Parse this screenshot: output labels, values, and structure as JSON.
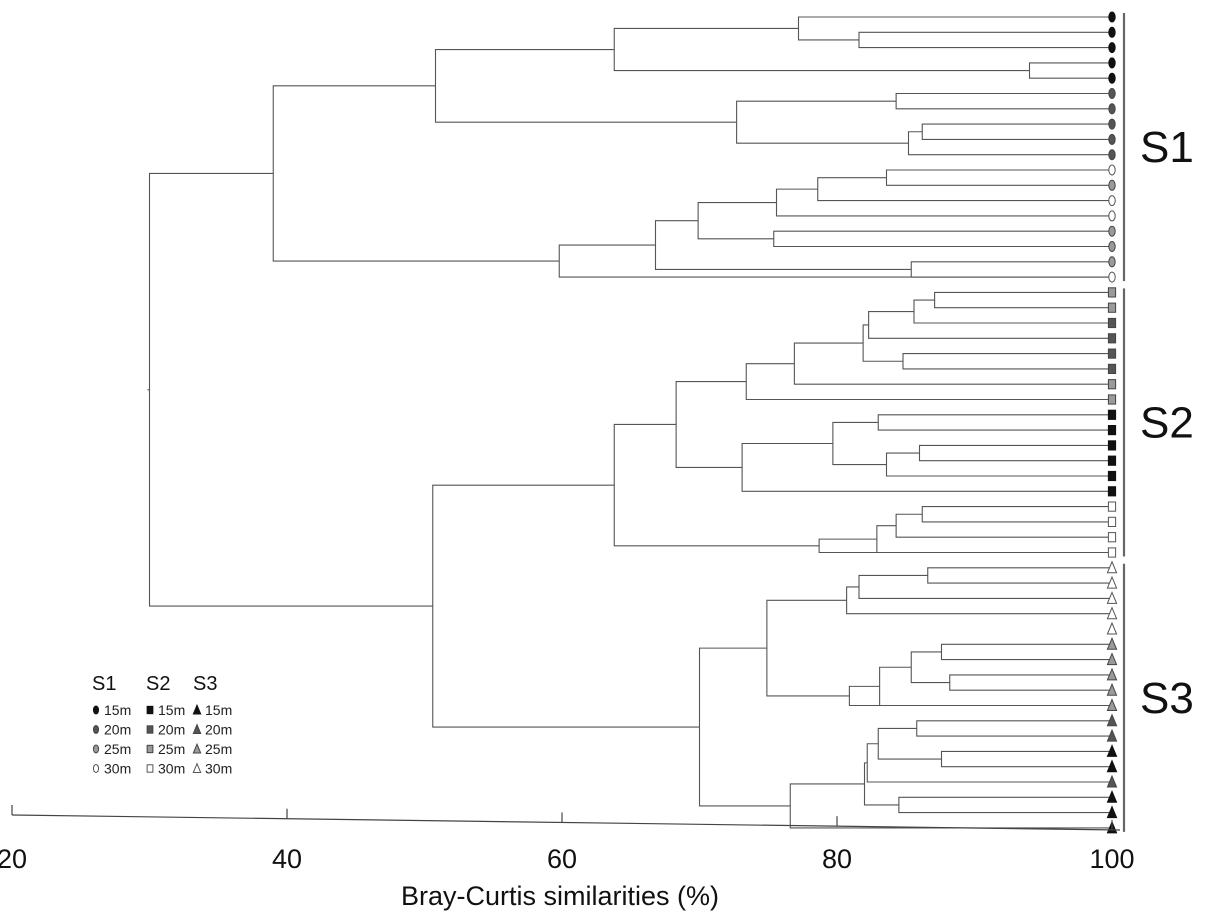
{
  "chart_data": {
    "type": "dendrogram",
    "xlabel": "Bray-Curtis similarities (%)",
    "xlim": [
      20,
      100
    ],
    "ticks": [
      20,
      40,
      60,
      80,
      100
    ],
    "tick_labels": [
      "20",
      "40",
      "60",
      "80",
      "100"
    ],
    "grid": false,
    "groups": [
      {
        "name": "S1",
        "leaves": [
          0,
          17
        ]
      },
      {
        "name": "S2",
        "leaves": [
          18,
          35
        ]
      },
      {
        "name": "S3",
        "leaves": [
          36,
          53
        ]
      }
    ],
    "leaf_symbols": [
      "S1-15",
      "S1-15",
      "S1-15",
      "S1-15",
      "S1-15",
      "S1-20",
      "S1-20",
      "S1-20",
      "S1-20",
      "S1-20",
      "S1-30",
      "S1-25",
      "S1-30",
      "S1-30",
      "S1-25",
      "S1-25",
      "S1-25",
      "S1-30",
      "S2-25",
      "S2-25",
      "S2-20",
      "S2-20",
      "S2-20",
      "S2-20",
      "S2-25",
      "S2-25",
      "S2-15",
      "S2-15",
      "S2-15",
      "S2-15",
      "S2-15",
      "S2-15",
      "S2-30",
      "S2-30",
      "S2-30",
      "S2-30",
      "S3-30",
      "S3-30",
      "S3-30",
      "S3-30",
      "S3-30",
      "S3-25",
      "S3-25",
      "S3-25",
      "S3-25",
      "S3-25",
      "S3-20",
      "S3-20",
      "S3-15",
      "S3-15",
      "S3-20",
      "S3-15",
      "S3-15",
      "S3-15"
    ],
    "merges": [
      {
        "id": "a1",
        "l": 1,
        "r": 2,
        "h": 81.6
      },
      {
        "id": "a2",
        "l": "a1",
        "r": 0,
        "h": 77.2
      },
      {
        "id": "a3",
        "l": 3,
        "r": 4,
        "h": 94.0
      },
      {
        "id": "a4",
        "l": "a2",
        "r": "a3",
        "h": 63.8
      },
      {
        "id": "b1",
        "l": 7,
        "r": 8,
        "h": 86.2
      },
      {
        "id": "b2",
        "l": "b1",
        "r": 9,
        "h": 85.2
      },
      {
        "id": "b3",
        "l": 5,
        "r": 6,
        "h": 84.3
      },
      {
        "id": "b4",
        "l": "b3",
        "r": "b2",
        "h": 72.7
      },
      {
        "id": "A",
        "l": "a4",
        "r": "b4",
        "h": 50.8
      },
      {
        "id": "c1",
        "l": 10,
        "r": 11,
        "h": 83.6
      },
      {
        "id": "c2",
        "l": "c1",
        "r": 12,
        "h": 78.6
      },
      {
        "id": "c3",
        "l": "c2",
        "r": 13,
        "h": 75.6
      },
      {
        "id": "c4",
        "l": 14,
        "r": 15,
        "h": 75.4
      },
      {
        "id": "c5",
        "l": "c3",
        "r": "c4",
        "h": 69.9
      },
      {
        "id": "c6",
        "l": 16,
        "r": 17,
        "h": 85.4
      },
      {
        "id": "c7",
        "l": "c5",
        "r": "c6",
        "h": 66.8
      },
      {
        "id": "c8",
        "l": "c7",
        "r": 17,
        "h": 59.8
      },
      {
        "id": "S1",
        "l": "A",
        "r": "c8",
        "h": 39.0
      },
      {
        "id": "d1",
        "l": 18,
        "r": 19,
        "h": 87.1
      },
      {
        "id": "d2",
        "l": "d1",
        "r": 20,
        "h": 85.6
      },
      {
        "id": "d3",
        "l": "d2",
        "r": 21,
        "h": 82.3
      },
      {
        "id": "d4",
        "l": 22,
        "r": 23,
        "h": 84.8
      },
      {
        "id": "d5",
        "l": "d3",
        "r": "d4",
        "h": 81.9
      },
      {
        "id": "d6",
        "l": "d5",
        "r": 24,
        "h": 76.9
      },
      {
        "id": "d7",
        "l": "d6",
        "r": 25,
        "h": 73.4
      },
      {
        "id": "e1",
        "l": 26,
        "r": 27,
        "h": 83.0
      },
      {
        "id": "e2",
        "l": 28,
        "r": 29,
        "h": 86.0
      },
      {
        "id": "e3",
        "l": "e2",
        "r": 30,
        "h": 83.6
      },
      {
        "id": "e4",
        "l": "e1",
        "r": "e3",
        "h": 79.7
      },
      {
        "id": "e5",
        "l": "e4",
        "r": 31,
        "h": 73.1
      },
      {
        "id": "f1",
        "l": "d7",
        "r": "e5",
        "h": 68.3
      },
      {
        "id": "g1",
        "l": 32,
        "r": 33,
        "h": 86.2
      },
      {
        "id": "g2",
        "l": "g1",
        "r": 34,
        "h": 84.3
      },
      {
        "id": "g3",
        "l": "g2",
        "r": 35,
        "h": 82.9
      },
      {
        "id": "g4",
        "l": "g3",
        "r": 35,
        "h": 78.7
      },
      {
        "id": "S2",
        "l": "f1",
        "r": "g4",
        "h": 63.8
      },
      {
        "id": "h1",
        "l": 36,
        "r": 37,
        "h": 86.6
      },
      {
        "id": "h2",
        "l": "h1",
        "r": 38,
        "h": 81.6
      },
      {
        "id": "h3",
        "l": "h2",
        "r": 39,
        "h": 80.7
      },
      {
        "id": "h4",
        "l": 41,
        "r": 42,
        "h": 87.6
      },
      {
        "id": "h5",
        "l": 43,
        "r": 44,
        "h": 88.2
      },
      {
        "id": "h6",
        "l": "h4",
        "r": "h5",
        "h": 85.4
      },
      {
        "id": "h7",
        "l": "h6",
        "r": 45,
        "h": 83.1
      },
      {
        "id": "h8",
        "l": "h7",
        "r": 45,
        "h": 80.9
      },
      {
        "id": "h9",
        "l": "h3",
        "r": "h8",
        "h": 74.9
      },
      {
        "id": "i1",
        "l": 46,
        "r": 47,
        "h": 85.8
      },
      {
        "id": "i2",
        "l": 48,
        "r": 49,
        "h": 87.6
      },
      {
        "id": "i3",
        "l": "i1",
        "r": "i2",
        "h": 83.0
      },
      {
        "id": "i4",
        "l": "i3",
        "r": 50,
        "h": 82.2
      },
      {
        "id": "i5",
        "l": 51,
        "r": 52,
        "h": 84.5
      },
      {
        "id": "i6",
        "l": "i4",
        "r": "i5",
        "h": 82.0
      },
      {
        "id": "i7",
        "l": "i6",
        "r": 53,
        "h": 76.6
      },
      {
        "id": "S3",
        "l": "h9",
        "r": "i7",
        "h": 70.0
      },
      {
        "id": "T1",
        "l": "S2",
        "r": "S3",
        "h": 50.6
      },
      {
        "id": "root",
        "l": "S1",
        "r": "T1",
        "h": 30.0
      }
    ]
  },
  "legend": {
    "headers": [
      "S1",
      "S2",
      "S3"
    ],
    "depths": [
      "15m",
      "20m",
      "25m",
      "30m"
    ],
    "colors": {
      "15m": "#111111",
      "20m": "#555555",
      "25m": "#9a9a9a",
      "30m": "#ffffff"
    }
  }
}
